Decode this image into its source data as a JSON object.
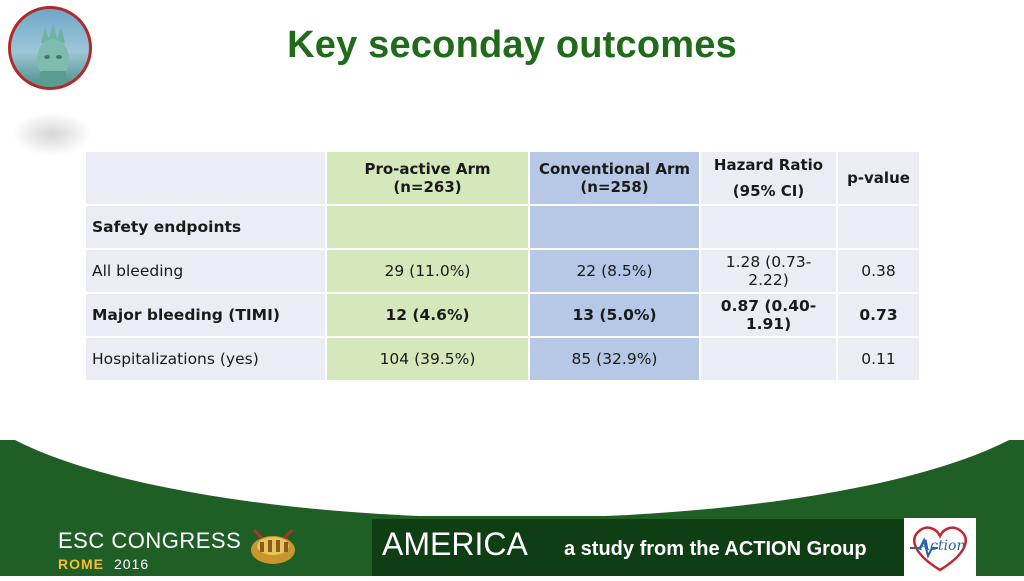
{
  "slide": {
    "title": "Key seconday outcomes"
  },
  "table": {
    "headers": {
      "pro_active": "Pro-active Arm (n=263)",
      "conventional_line1": "Conventional Arm",
      "conventional_line2": "(n=258)",
      "hazard_line1": "Hazard Ratio",
      "hazard_line2": "(95% CI)",
      "p_value": "p-value"
    },
    "section_label": "Safety endpoints",
    "rows": [
      {
        "label": "All bleeding",
        "pro": "29 (11.0%)",
        "conv": "22 (8.5%)",
        "hr": "1.28 (0.73-2.22)",
        "p": "0.38"
      },
      {
        "label": "Major bleeding (TIMI)",
        "pro": "12 (4.6%)",
        "conv": "13 (5.0%)",
        "hr": "0.87 (0.40-1.91)",
        "p": "0.73"
      },
      {
        "label": "Hospitalizations (yes)",
        "pro": "104 (39.5%)",
        "conv": "85 (32.9%)",
        "hr": "",
        "p": "0.11"
      }
    ]
  },
  "footer": {
    "esc_name": "ESC CONGRESS",
    "esc_city": "ROME",
    "esc_year": "2016",
    "study_name": "AMERICA",
    "tagline": "a study from the ACTION Group",
    "action_logo_text": "Action"
  },
  "colors": {
    "title_green": "#1f6b1a",
    "footer_green": "#1f5f26",
    "pro_active_fill": "#d4e8bc",
    "conventional_fill": "#b7c8e6",
    "neutral_fill": "#ececf5",
    "logo_border": "#b02a2a"
  },
  "icons": {
    "statue_logo": "statue-of-liberty-logo",
    "colosseum": "colosseum-icon",
    "action_heart": "heart-ecg-icon"
  }
}
